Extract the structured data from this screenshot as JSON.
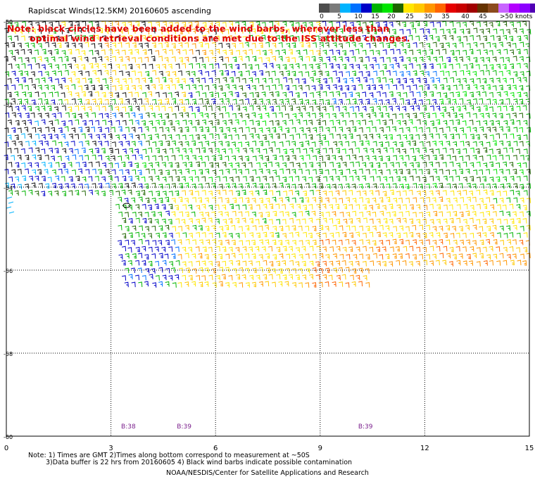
{
  "title": "Rapidscat Winds(12.5KM) 20160605 ascending",
  "note": {
    "line1": "Note: black circles have been added to the wind barbs, wherever less than",
    "line2": "optimal wind retrieval conditions are met due to the ISS attitude changes."
  },
  "legend": {
    "ticks": [
      "0",
      "5",
      "10",
      "15",
      "20",
      "25",
      "30",
      "35",
      "40",
      "45",
      ">50 knots"
    ],
    "colors": [
      "#4d4d4d",
      "#7a7a7a",
      "#00b4ff",
      "#0070ff",
      "#0000c8",
      "#00b400",
      "#00e600",
      "#1e6400",
      "#ffe600",
      "#ffc800",
      "#ff9600",
      "#ff6400",
      "#e60000",
      "#c80000",
      "#a00000",
      "#643200",
      "#8c4b1e",
      "#c864ff",
      "#b400ff",
      "#8c00ff",
      "#5000b4"
    ]
  },
  "map": {
    "lon_ticks": [
      "0",
      "3",
      "6",
      "9",
      "12",
      "15"
    ],
    "lat_ticks": [
      "-50",
      "-52",
      "-54",
      "-56",
      "-58",
      "-60"
    ],
    "lon_range": [
      0,
      15
    ],
    "lat_range": [
      -60,
      -50
    ],
    "time_labels": [
      {
        "text": "B:38",
        "lon": 3.5
      },
      {
        "text": "B:39",
        "lon": 5.1
      },
      {
        "text": "B:39",
        "lon": 10.3
      }
    ]
  },
  "footer": {
    "notes_line1": "Note: 1) Times are GMT 2)Times along bottom correspond to measurement at ~50S",
    "notes_line2": "3)Data buffer is 22 hrs from 20160605 4) Black wind barbs indicate possible contamination",
    "credit": "NOAA/NESDIS/Center for Satellite Applications and Research"
  }
}
